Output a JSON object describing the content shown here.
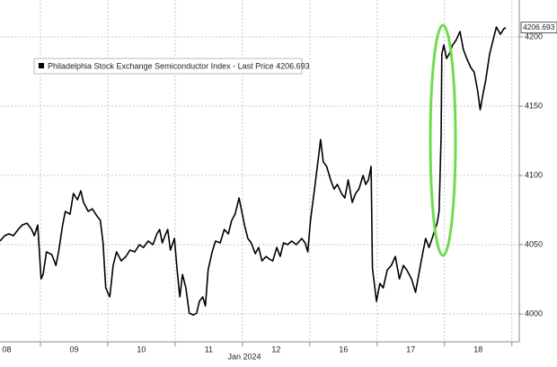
{
  "chart_data": {
    "type": "line",
    "xlabel": "Jan 2024",
    "xlim": [
      0.4,
      8.11
    ],
    "xticks": [
      {
        "value": 0.5,
        "label": "08"
      },
      {
        "value": 1.5,
        "label": "09"
      },
      {
        "value": 2.5,
        "label": "10"
      },
      {
        "value": 3.5,
        "label": "11"
      },
      {
        "value": 4.5,
        "label": "12"
      },
      {
        "value": 5.5,
        "label": "16"
      },
      {
        "value": 6.5,
        "label": "17"
      },
      {
        "value": 7.5,
        "label": "18"
      }
    ],
    "ylim": [
      3979.9,
      4226.6
    ],
    "yticks": [
      4000,
      4050,
      4100,
      4150,
      4200
    ],
    "grid": true,
    "last_value": 4206.693,
    "series": [
      {
        "name": "Philadelphia Stock Exchange Semiconductor Index - Last Price 4206.693",
        "color": "#000000",
        "x": [
          0.4,
          0.47,
          0.53,
          0.6,
          0.67,
          0.73,
          0.8,
          0.87,
          0.91,
          0.96,
          1.01,
          1.04,
          1.09,
          1.17,
          1.23,
          1.27,
          1.33,
          1.37,
          1.44,
          1.49,
          1.55,
          1.6,
          1.64,
          1.71,
          1.77,
          1.84,
          1.89,
          1.93,
          1.97,
          2.03,
          2.08,
          2.13,
          2.2,
          2.27,
          2.33,
          2.4,
          2.47,
          2.53,
          2.6,
          2.67,
          2.73,
          2.77,
          2.81,
          2.85,
          2.89,
          2.93,
          2.99,
          3.03,
          3.07,
          3.11,
          3.16,
          3.21,
          3.27,
          3.32,
          3.36,
          3.41,
          3.45,
          3.49,
          3.55,
          3.6,
          3.67,
          3.73,
          3.79,
          3.84,
          3.89,
          3.95,
          3.99,
          4.03,
          4.08,
          4.13,
          4.19,
          4.24,
          4.29,
          4.35,
          4.4,
          4.45,
          4.51,
          4.56,
          4.61,
          4.67,
          4.73,
          4.8,
          4.88,
          4.93,
          4.97,
          5.01,
          5.07,
          5.12,
          5.16,
          5.2,
          5.25,
          5.31,
          5.36,
          5.41,
          5.47,
          5.52,
          5.57,
          5.63,
          5.68,
          5.73,
          5.79,
          5.83,
          5.87,
          5.91,
          5.93,
          5.99,
          6.04,
          6.09,
          6.15,
          6.21,
          6.27,
          6.33,
          6.39,
          6.44,
          6.51,
          6.57,
          6.63,
          6.68,
          6.72,
          6.77,
          6.83,
          6.89,
          6.92,
          6.95,
          6.96,
          6.99,
          7.03,
          7.07,
          7.12,
          7.17,
          7.23,
          7.28,
          7.33,
          7.39,
          7.44,
          7.49,
          7.53,
          7.57,
          7.61,
          7.67,
          7.72,
          7.77,
          7.83,
          7.88,
          7.91
        ],
        "values": [
          4052.6,
          4056.5,
          4057.8,
          4056.5,
          4061.0,
          4064.2,
          4065.5,
          4061.0,
          4056.5,
          4064.2,
          4025.3,
          4028.5,
          4044.8,
          4042.8,
          4035.0,
          4044.8,
          4064.2,
          4074.0,
          4072.0,
          4087.0,
          4082.4,
          4088.9,
          4080.5,
          4074.0,
          4075.9,
          4070.7,
          4067.5,
          4051.3,
          4018.8,
          4012.3,
          4035.0,
          4044.8,
          4038.3,
          4041.5,
          4046.1,
          4044.8,
          4050.0,
          4048.0,
          4052.6,
          4050.0,
          4057.8,
          4061.0,
          4051.3,
          4056.5,
          4061.0,
          4046.1,
          4054.5,
          4031.8,
          4012.3,
          4028.5,
          4018.8,
          4000.6,
          3999.3,
          4000.6,
          4009.1,
          4012.3,
          4005.8,
          4031.8,
          4044.8,
          4052.6,
          4051.3,
          4061.0,
          4057.8,
          4067.5,
          4072.0,
          4083.7,
          4074.0,
          4064.2,
          4054.5,
          4051.3,
          4043.5,
          4048.0,
          4038.3,
          4041.5,
          4039.6,
          4038.3,
          4048.0,
          4041.5,
          4051.3,
          4050.0,
          4052.6,
          4050.0,
          4054.5,
          4051.3,
          4044.8,
          4067.5,
          4090.2,
          4109.7,
          4125.9,
          4109.7,
          4106.5,
          4096.7,
          4090.2,
          4093.5,
          4087.0,
          4083.7,
          4096.7,
          4080.5,
          4087.0,
          4090.2,
          4100.0,
          4093.5,
          4096.7,
          4106.5,
          4033.1,
          4009.1,
          4022.0,
          4018.8,
          4031.8,
          4035.0,
          4041.5,
          4025.3,
          4035.0,
          4031.8,
          4025.3,
          4015.6,
          4031.8,
          4044.8,
          4054.5,
          4048.0,
          4056.5,
          4065.5,
          4074.0,
          4129.2,
          4187.6,
          4194.1,
          4184.4,
          4187.6,
          4194.1,
          4197.4,
          4203.9,
          4190.9,
          4184.4,
          4177.9,
          4174.6,
          4161.7,
          4147.4,
          4158.4,
          4168.2,
          4187.6,
          4197.4,
          4207.1,
          4201.9,
          4205.8,
          4206.7
        ]
      }
    ]
  }
}
